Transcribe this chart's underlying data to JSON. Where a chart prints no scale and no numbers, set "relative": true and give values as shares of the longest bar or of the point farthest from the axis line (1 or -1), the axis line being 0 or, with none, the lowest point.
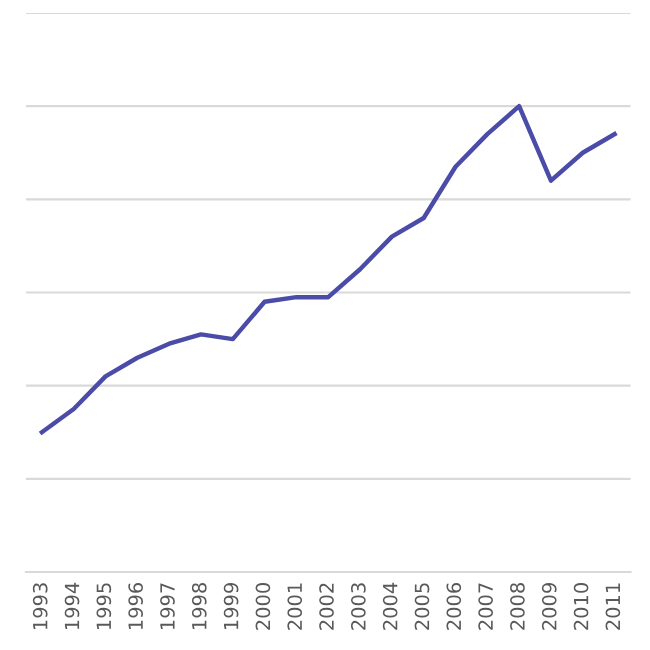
{
  "chart_data": {
    "type": "line",
    "relative": true,
    "grid": "y",
    "marker": "none",
    "line_style": "solid",
    "categories": [
      "1993",
      "1994",
      "1995",
      "1996",
      "1997",
      "1998",
      "1999",
      "2000",
      "2001",
      "2002",
      "2003",
      "2004",
      "2005",
      "2006",
      "2007",
      "2008",
      "2009",
      "2010",
      "2011"
    ],
    "series": [
      {
        "color": "#4b4ba8",
        "values": [
          0.3,
          0.35,
          0.42,
          0.46,
          0.49,
          0.51,
          0.5,
          0.58,
          0.59,
          0.59,
          0.65,
          0.72,
          0.76,
          0.87,
          0.94,
          1,
          0.84,
          0.9,
          0.94
        ]
      }
    ]
  }
}
